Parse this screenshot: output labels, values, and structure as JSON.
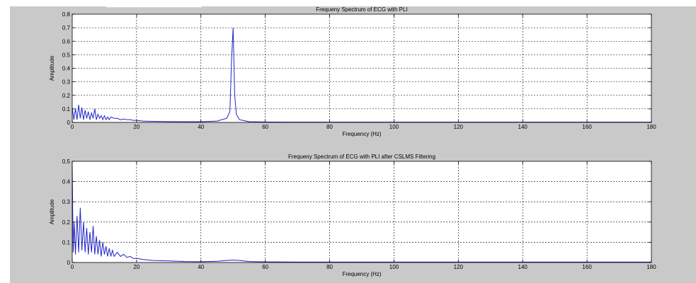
{
  "figure": {
    "background_color": "#c9c9c9",
    "axes_color": "#ffffff",
    "line_color": "#2323c8",
    "grid": true
  },
  "chart_data": [
    {
      "type": "line",
      "title": "Frequeny Spectrum of ECG with PLI",
      "xlabel": "Frequency (Hz)",
      "ylabel": "Amplitude",
      "xlim": [
        0,
        180
      ],
      "ylim": [
        0,
        0.8
      ],
      "xticks": [
        0,
        20,
        40,
        60,
        80,
        100,
        120,
        140,
        160,
        180
      ],
      "yticks": [
        0,
        0.1,
        0.2,
        0.3,
        0.4,
        0.5,
        0.6,
        0.7,
        0.8
      ],
      "series": [
        {
          "color": "#2323c8",
          "x": [
            0,
            0.5,
            1,
            1.5,
            2,
            2.5,
            3,
            3.5,
            4,
            4.5,
            5,
            5.5,
            6,
            6.5,
            7,
            7.5,
            8,
            8.5,
            9,
            9.5,
            10,
            10.5,
            11,
            11.5,
            12,
            13,
            14,
            15,
            16,
            17,
            18,
            19,
            20,
            22,
            25,
            30,
            35,
            40,
            45,
            48,
            49,
            49.5,
            50,
            50.5,
            51,
            52,
            55,
            60,
            70,
            80,
            100,
            120,
            140,
            160,
            180
          ],
          "y": [
            0.11,
            0.02,
            0.1,
            0.02,
            0.13,
            0.03,
            0.11,
            0.02,
            0.09,
            0.03,
            0.08,
            0.02,
            0.07,
            0.03,
            0.1,
            0.02,
            0.06,
            0.03,
            0.05,
            0.02,
            0.05,
            0.02,
            0.04,
            0.02,
            0.04,
            0.03,
            0.03,
            0.02,
            0.025,
            0.02,
            0.02,
            0.015,
            0.015,
            0.01,
            0.008,
            0.006,
            0.005,
            0.005,
            0.01,
            0.03,
            0.08,
            0.45,
            0.7,
            0.2,
            0.06,
            0.02,
            0.005,
            0.003,
            0.002,
            0.002,
            0.002,
            0.002,
            0.002,
            0.002,
            0.002
          ]
        }
      ]
    },
    {
      "type": "line",
      "title": "Frequeny Spectrum of ECG with PLI after CSLMS Filtering",
      "xlabel": "Frequency (Hz)",
      "ylabel": "Amplitude",
      "xlim": [
        0,
        180
      ],
      "ylim": [
        0,
        0.5
      ],
      "xticks": [
        0,
        20,
        40,
        60,
        80,
        100,
        120,
        140,
        160,
        180
      ],
      "yticks": [
        0,
        0.1,
        0.2,
        0.3,
        0.4,
        0.5
      ],
      "series": [
        {
          "color": "#2323c8",
          "x": [
            0,
            0.3,
            0.6,
            1,
            1.5,
            2,
            2.5,
            3,
            3.5,
            4,
            4.5,
            5,
            5.5,
            6,
            6.5,
            7,
            7.5,
            8,
            8.5,
            9,
            9.5,
            10,
            10.5,
            11,
            11.5,
            12,
            12.5,
            13,
            14,
            15,
            16,
            17,
            18,
            19,
            20,
            22,
            25,
            30,
            35,
            40,
            45,
            48,
            50,
            52,
            55,
            60,
            70,
            80,
            100,
            120,
            140,
            160,
            180
          ],
          "y": [
            0.48,
            0.05,
            0.2,
            0.04,
            0.23,
            0.05,
            0.27,
            0.06,
            0.2,
            0.05,
            0.17,
            0.04,
            0.15,
            0.05,
            0.18,
            0.04,
            0.13,
            0.04,
            0.11,
            0.03,
            0.1,
            0.04,
            0.08,
            0.03,
            0.07,
            0.03,
            0.06,
            0.03,
            0.05,
            0.03,
            0.04,
            0.025,
            0.03,
            0.02,
            0.02,
            0.015,
            0.01,
            0.008,
            0.005,
            0.004,
            0.006,
            0.01,
            0.012,
            0.01,
            0.005,
            0.003,
            0.002,
            0.002,
            0.002,
            0.002,
            0.002,
            0.002,
            0.002
          ]
        }
      ]
    }
  ]
}
